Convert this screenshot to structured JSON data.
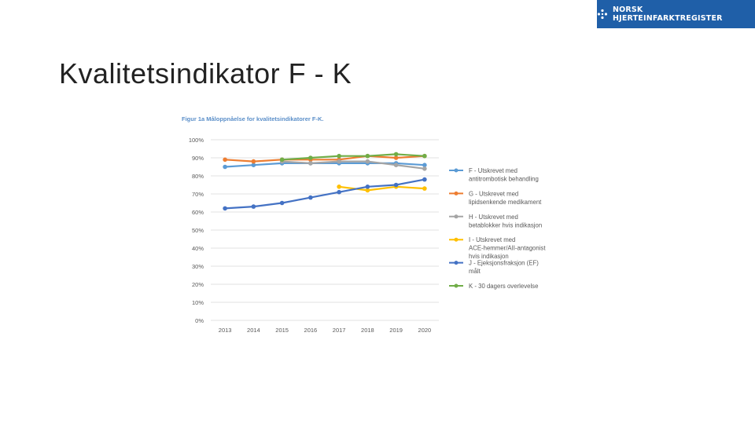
{
  "brand": {
    "name": "NORSK HJERTEINFARKTREGISTER",
    "logo_icon": "heart-dots-icon"
  },
  "slide": {
    "title": "Kvalitetsindikator F - K"
  },
  "chart_data": {
    "type": "line",
    "title": "Figur 1a Måloppnåelse for kvalitetsindikatorer F-K.",
    "x": [
      2013,
      2014,
      2015,
      2016,
      2017,
      2018,
      2019,
      2020
    ],
    "ylim": [
      0,
      100
    ],
    "yticks": [
      "0%",
      "10%",
      "20%",
      "30%",
      "40%",
      "50%",
      "60%",
      "70%",
      "80%",
      "90%",
      "100%"
    ],
    "grid": true,
    "legend_position": "right",
    "series": [
      {
        "name": "F - Utskrevet med antitrombotisk behandling",
        "color": "#5b9bd5",
        "values": [
          85,
          86,
          87,
          87,
          87,
          87,
          87,
          86
        ]
      },
      {
        "name": "G - Utskrevet med lipidsenkende medikament",
        "color": "#ed7d31",
        "values": [
          89,
          88,
          89,
          89,
          89,
          91,
          90,
          91
        ]
      },
      {
        "name": "H - Utskrevet med betablokker hvis indikasjon",
        "color": "#a5a5a5",
        "values": [
          null,
          null,
          88,
          87,
          88,
          88,
          86,
          84
        ]
      },
      {
        "name": "I - Utskrevet med ACE-hemmer/AII-antagonist hvis indikasjon",
        "color": "#ffc000",
        "values": [
          null,
          null,
          null,
          null,
          74,
          72,
          74,
          73
        ]
      },
      {
        "name": "J - Ejeksjonsfraksjon (EF) målt",
        "color": "#4472c4",
        "values": [
          62,
          63,
          65,
          68,
          71,
          74,
          75,
          78
        ]
      },
      {
        "name": "K - 30 dagers overlevelse",
        "color": "#70ad47",
        "values": [
          null,
          null,
          89,
          90,
          91,
          91,
          92,
          91
        ]
      }
    ]
  }
}
